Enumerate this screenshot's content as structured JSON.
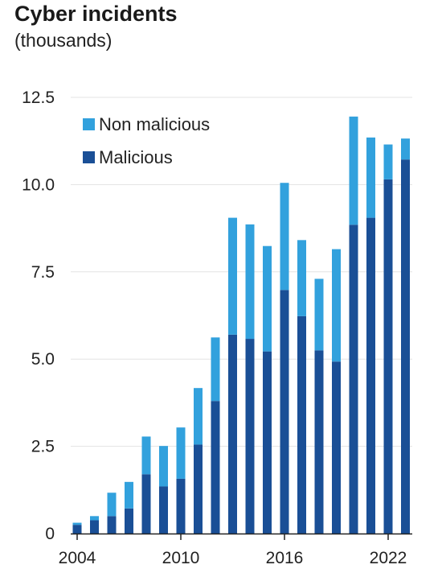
{
  "chart_data": {
    "type": "bar",
    "stacked": true,
    "title": "Cyber incidents",
    "subtitle": "(thousands)",
    "xlabel": "",
    "ylabel": "",
    "x": [
      2004,
      2005,
      2006,
      2007,
      2008,
      2009,
      2010,
      2011,
      2012,
      2013,
      2014,
      2015,
      2016,
      2017,
      2018,
      2019,
      2020,
      2021,
      2022,
      2023
    ],
    "x_tick_labels": [
      "2004",
      "2010",
      "2016",
      "2022"
    ],
    "y_tick_labels": [
      "0",
      "2.5",
      "5.0",
      "7.5",
      "10.0",
      "12.5"
    ],
    "ylim": [
      0,
      12.5
    ],
    "series": [
      {
        "name": "Malicious",
        "color": "#1a4f96",
        "values": [
          0.25,
          0.38,
          0.5,
          0.72,
          1.7,
          1.35,
          1.57,
          2.55,
          3.8,
          5.7,
          5.58,
          5.22,
          6.98,
          6.23,
          5.25,
          4.93,
          8.85,
          9.05,
          10.15,
          10.72
        ]
      },
      {
        "name": "Non malicious",
        "color": "#32a1dd",
        "values": [
          0.06,
          0.12,
          0.67,
          0.76,
          1.08,
          1.16,
          1.47,
          1.62,
          1.82,
          3.35,
          3.28,
          3.02,
          3.07,
          2.18,
          2.05,
          3.22,
          3.1,
          2.3,
          1.0,
          0.6
        ]
      }
    ],
    "legend": {
      "position": "top-left",
      "order": [
        "Non malicious",
        "Malicious"
      ]
    },
    "grid": true
  }
}
